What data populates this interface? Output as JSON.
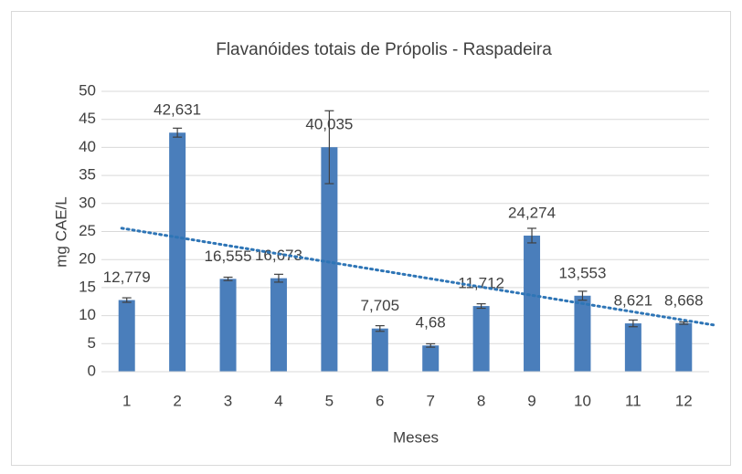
{
  "chart_data": {
    "type": "bar",
    "title": "Flavanóides totais de Própolis - Raspadeira",
    "x_label": "Meses",
    "y_label": "mg CAE/L",
    "categories": [
      "1",
      "2",
      "3",
      "4",
      "5",
      "6",
      "7",
      "8",
      "9",
      "10",
      "11",
      "12"
    ],
    "values": [
      12.779,
      42.631,
      16.555,
      16.673,
      40.035,
      7.705,
      4.68,
      11.712,
      24.274,
      13.553,
      8.621,
      8.668
    ],
    "value_labels": [
      "12,779",
      "42,631",
      "16,555",
      "16,673",
      "40,035",
      "7,705",
      "4,68",
      "11,712",
      "24,274",
      "13,553",
      "8,621",
      "8,668"
    ],
    "errors": [
      0.4,
      0.8,
      0.3,
      0.7,
      6.5,
      0.5,
      0.3,
      0.4,
      1.3,
      0.8,
      0.6,
      0.2
    ],
    "color": "#4a7ebb",
    "trendline": {
      "type": "linear",
      "color": "#2e75b6"
    },
    "ylim": [
      0,
      50
    ],
    "yticks": [
      0,
      5,
      10,
      15,
      20,
      25,
      30,
      35,
      40,
      45,
      50
    ],
    "grid": true
  }
}
